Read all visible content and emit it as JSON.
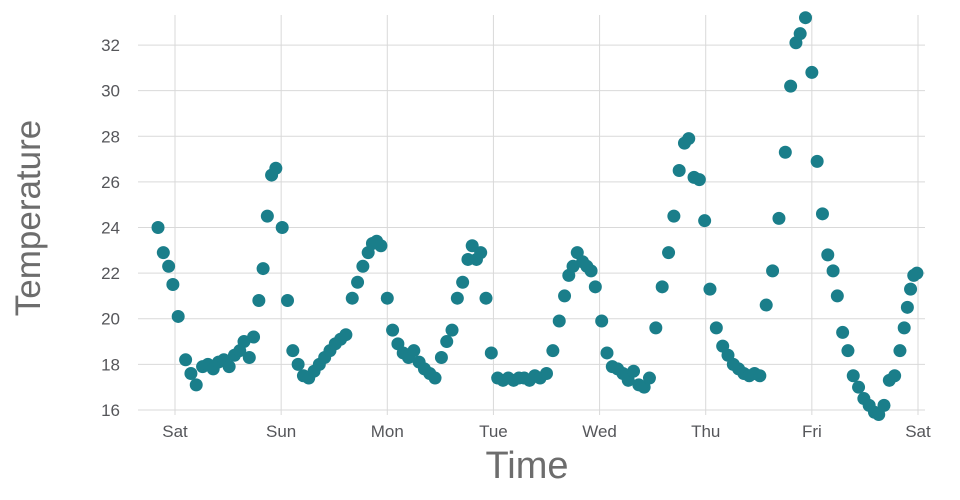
{
  "chart_data": {
    "type": "scatter",
    "title": "",
    "xlabel": "Time",
    "ylabel": "Temperature",
    "x_tick_labels": [
      "Sat",
      "Sun",
      "Mon",
      "Tue",
      "Wed",
      "Thu",
      "Fri",
      "Sat"
    ],
    "x_tick_positions": [
      0,
      1,
      2,
      3,
      4,
      5,
      6,
      7
    ],
    "y_ticks": [
      16,
      18,
      20,
      22,
      24,
      26,
      28,
      30,
      32
    ],
    "xlim": [
      -0.424,
      7.066
    ],
    "ylim": [
      15.56,
      33.45
    ],
    "grid": true,
    "legend": "none",
    "marker_color": "#1a7e8a",
    "marker_radius": 6.5,
    "grid_color": "#d9d9d9",
    "points": [
      [
        -0.16,
        24.0
      ],
      [
        -0.11,
        22.9
      ],
      [
        -0.06,
        22.3
      ],
      [
        -0.02,
        21.5
      ],
      [
        0.03,
        20.1
      ],
      [
        0.1,
        18.2
      ],
      [
        0.15,
        17.6
      ],
      [
        0.2,
        17.1
      ],
      [
        0.26,
        17.9
      ],
      [
        0.31,
        18.0
      ],
      [
        0.36,
        17.8
      ],
      [
        0.41,
        18.1
      ],
      [
        0.46,
        18.2
      ],
      [
        0.51,
        17.9
      ],
      [
        0.56,
        18.4
      ],
      [
        0.61,
        18.6
      ],
      [
        0.65,
        19.0
      ],
      [
        0.7,
        18.3
      ],
      [
        0.74,
        19.2
      ],
      [
        0.79,
        20.8
      ],
      [
        0.83,
        22.2
      ],
      [
        0.87,
        24.5
      ],
      [
        0.91,
        26.3
      ],
      [
        0.95,
        26.6
      ],
      [
        1.01,
        24.0
      ],
      [
        1.06,
        20.8
      ],
      [
        1.11,
        18.6
      ],
      [
        1.16,
        18.0
      ],
      [
        1.21,
        17.5
      ],
      [
        1.26,
        17.4
      ],
      [
        1.31,
        17.7
      ],
      [
        1.36,
        18.0
      ],
      [
        1.41,
        18.3
      ],
      [
        1.46,
        18.6
      ],
      [
        1.51,
        18.9
      ],
      [
        1.56,
        19.1
      ],
      [
        1.61,
        19.3
      ],
      [
        1.67,
        20.9
      ],
      [
        1.72,
        21.6
      ],
      [
        1.77,
        22.3
      ],
      [
        1.82,
        22.9
      ],
      [
        1.86,
        23.3
      ],
      [
        1.9,
        23.4
      ],
      [
        1.94,
        23.2
      ],
      [
        2.0,
        20.9
      ],
      [
        2.05,
        19.5
      ],
      [
        2.1,
        18.9
      ],
      [
        2.15,
        18.5
      ],
      [
        2.2,
        18.3
      ],
      [
        2.25,
        18.6
      ],
      [
        2.3,
        18.1
      ],
      [
        2.35,
        17.8
      ],
      [
        2.4,
        17.6
      ],
      [
        2.45,
        17.4
      ],
      [
        2.51,
        18.3
      ],
      [
        2.56,
        19.0
      ],
      [
        2.61,
        19.5
      ],
      [
        2.66,
        20.9
      ],
      [
        2.71,
        21.6
      ],
      [
        2.76,
        22.6
      ],
      [
        2.8,
        23.2
      ],
      [
        2.84,
        22.6
      ],
      [
        2.88,
        22.9
      ],
      [
        2.93,
        20.9
      ],
      [
        2.98,
        18.5
      ],
      [
        3.04,
        17.4
      ],
      [
        3.09,
        17.3
      ],
      [
        3.14,
        17.4
      ],
      [
        3.19,
        17.3
      ],
      [
        3.24,
        17.4
      ],
      [
        3.29,
        17.4
      ],
      [
        3.34,
        17.3
      ],
      [
        3.39,
        17.5
      ],
      [
        3.44,
        17.4
      ],
      [
        3.5,
        17.6
      ],
      [
        3.56,
        18.6
      ],
      [
        3.62,
        19.9
      ],
      [
        3.67,
        21.0
      ],
      [
        3.71,
        21.9
      ],
      [
        3.75,
        22.3
      ],
      [
        3.79,
        22.9
      ],
      [
        3.84,
        22.5
      ],
      [
        3.88,
        22.3
      ],
      [
        3.92,
        22.1
      ],
      [
        3.96,
        21.4
      ],
      [
        4.02,
        19.9
      ],
      [
        4.07,
        18.5
      ],
      [
        4.12,
        17.9
      ],
      [
        4.17,
        17.8
      ],
      [
        4.22,
        17.6
      ],
      [
        4.27,
        17.3
      ],
      [
        4.32,
        17.7
      ],
      [
        4.37,
        17.1
      ],
      [
        4.42,
        17.0
      ],
      [
        4.47,
        17.4
      ],
      [
        4.53,
        19.6
      ],
      [
        4.59,
        21.4
      ],
      [
        4.65,
        22.9
      ],
      [
        4.7,
        24.5
      ],
      [
        4.75,
        26.5
      ],
      [
        4.8,
        27.7
      ],
      [
        4.84,
        27.9
      ],
      [
        4.89,
        26.2
      ],
      [
        4.94,
        26.1
      ],
      [
        4.99,
        24.3
      ],
      [
        5.04,
        21.3
      ],
      [
        5.1,
        19.6
      ],
      [
        5.16,
        18.8
      ],
      [
        5.21,
        18.4
      ],
      [
        5.26,
        18.0
      ],
      [
        5.31,
        17.8
      ],
      [
        5.36,
        17.6
      ],
      [
        5.41,
        17.5
      ],
      [
        5.46,
        17.6
      ],
      [
        5.51,
        17.5
      ],
      [
        5.57,
        20.6
      ],
      [
        5.63,
        22.1
      ],
      [
        5.69,
        24.4
      ],
      [
        5.75,
        27.3
      ],
      [
        5.8,
        30.2
      ],
      [
        5.85,
        32.1
      ],
      [
        5.89,
        32.5
      ],
      [
        5.94,
        33.2
      ],
      [
        6.0,
        30.8
      ],
      [
        6.05,
        26.9
      ],
      [
        6.1,
        24.6
      ],
      [
        6.15,
        22.8
      ],
      [
        6.2,
        22.1
      ],
      [
        6.24,
        21.0
      ],
      [
        6.29,
        19.4
      ],
      [
        6.34,
        18.6
      ],
      [
        6.39,
        17.5
      ],
      [
        6.44,
        17.0
      ],
      [
        6.49,
        16.5
      ],
      [
        6.54,
        16.2
      ],
      [
        6.59,
        15.9
      ],
      [
        6.63,
        15.8
      ],
      [
        6.68,
        16.2
      ],
      [
        6.73,
        17.3
      ],
      [
        6.78,
        17.5
      ],
      [
        6.83,
        18.6
      ],
      [
        6.87,
        19.6
      ],
      [
        6.9,
        20.5
      ],
      [
        6.93,
        21.3
      ],
      [
        6.96,
        21.9
      ],
      [
        6.99,
        22.0
      ]
    ]
  }
}
